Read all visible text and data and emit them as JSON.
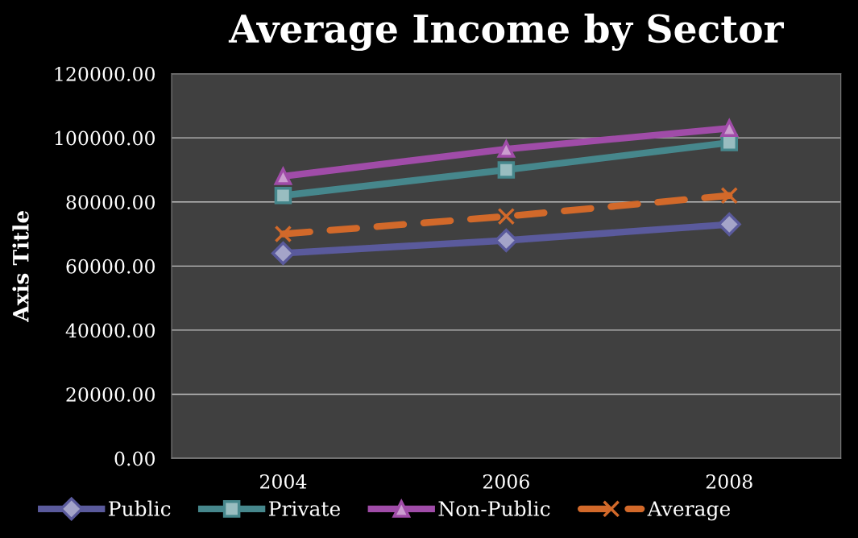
{
  "chart_data": {
    "type": "line",
    "title": "Average Income by Sector",
    "ylabel": "Axis Title",
    "categories": [
      "2004",
      "2006",
      "2008"
    ],
    "series": [
      {
        "name": "Public",
        "color": "#5a5a9c",
        "marker": "diamond",
        "line_style": "solid",
        "values": [
          64000,
          68000,
          73000
        ]
      },
      {
        "name": "Private",
        "color": "#46878c",
        "marker": "square",
        "line_style": "solid",
        "values": [
          82000,
          90000,
          98500
        ]
      },
      {
        "name": "Non-Public",
        "color": "#a04ca8",
        "marker": "triangle",
        "line_style": "solid",
        "values": [
          88000,
          96500,
          103000
        ]
      },
      {
        "name": "Average",
        "color": "#d2692a",
        "marker": "cross",
        "line_style": "dashed",
        "values": [
          70000,
          75500,
          82000
        ]
      }
    ],
    "ylim": [
      0,
      120000
    ],
    "yticks": [
      {
        "value": 0,
        "label": "0.00"
      },
      {
        "value": 20000,
        "label": "20000.00"
      },
      {
        "value": 40000,
        "label": "40000.00"
      },
      {
        "value": 60000,
        "label": "60000.00"
      },
      {
        "value": 80000,
        "label": "80000.00"
      },
      {
        "value": 100000,
        "label": "100000.00"
      },
      {
        "value": 120000,
        "label": "120000.00"
      }
    ],
    "grid": "y",
    "legend": "bottom"
  }
}
